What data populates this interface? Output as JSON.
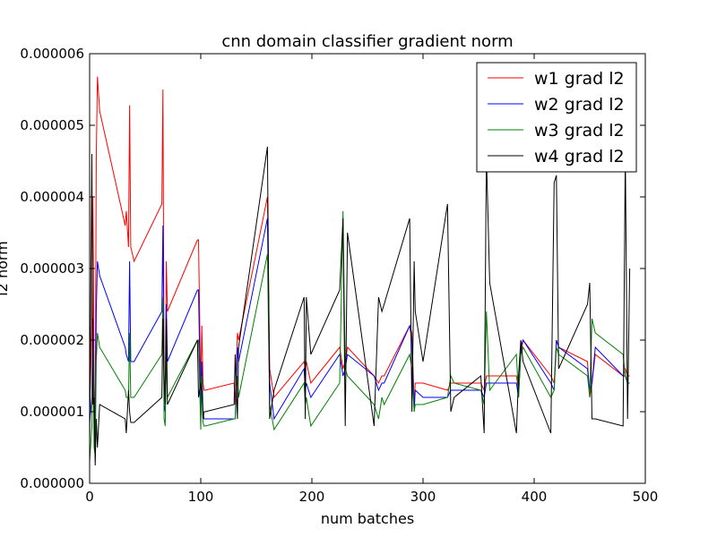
{
  "chart_data": {
    "type": "line",
    "title": "cnn domain classifier gradient norm",
    "xlabel": "num batches",
    "ylabel": "l2 norm",
    "xlim": [
      0,
      500
    ],
    "ylim": [
      0,
      6e-06
    ],
    "xticks": [
      0,
      100,
      200,
      300,
      400,
      500
    ],
    "xtick_labels": [
      "0",
      "100",
      "200",
      "300",
      "400",
      "500"
    ],
    "yticks": [
      0,
      1e-06,
      2e-06,
      3e-06,
      4e-06,
      5e-06,
      6e-06
    ],
    "ytick_labels": [
      "0.000000",
      "0.000001",
      "0.000002",
      "0.000003",
      "0.000004",
      "0.000005",
      "0.000006"
    ],
    "grid": false,
    "legend_position": "top-right",
    "series": [
      {
        "name": "w1 grad l2",
        "color": "#ff0000",
        "x": [
          0,
          2,
          3,
          4,
          5,
          6,
          7,
          9,
          32,
          33,
          35,
          36,
          37,
          40,
          65,
          66,
          67,
          68,
          69,
          70,
          97,
          98,
          100,
          101,
          102,
          103,
          104,
          130,
          131,
          133,
          134,
          160,
          162,
          166,
          193,
          194,
          195,
          199,
          225,
          228,
          230,
          232,
          256,
          260,
          263,
          265,
          288,
          290,
          292,
          293,
          300,
          322,
          325,
          328,
          352,
          355,
          357,
          360,
          384,
          386,
          388,
          390,
          415,
          418,
          420,
          422,
          448,
          450,
          452,
          455,
          480,
          482,
          484,
          486
        ],
        "y": [
          1e-06,
          2.2e-06,
          4e-06,
          1.4e-06,
          8e-07,
          4.5e-06,
          5.68e-06,
          5.2e-06,
          3.6e-06,
          3.8e-06,
          3.3e-06,
          5.28e-06,
          3.3e-06,
          3.1e-06,
          3.9e-06,
          5.5e-06,
          1.4e-06,
          1.2e-06,
          3.1e-06,
          2.4e-06,
          3.4e-06,
          3.4e-06,
          1.3e-06,
          2.2e-06,
          1.4e-06,
          1.3e-06,
          1.3e-06,
          1.4e-06,
          1.1e-06,
          2.1e-06,
          2e-06,
          4e-06,
          1.6e-06,
          1.2e-06,
          1.7e-06,
          1.6e-06,
          1.7e-06,
          1.4e-06,
          1.9e-06,
          1.6e-06,
          1.7e-06,
          1.9e-06,
          1.5e-06,
          1.4e-06,
          1.5e-06,
          1.5e-06,
          2.2e-06,
          2.1e-06,
          1.1e-06,
          1.4e-06,
          1.4e-06,
          1.3e-06,
          1.4e-06,
          1.4e-06,
          1.4e-06,
          1.3e-06,
          1.5e-06,
          1.5e-06,
          1.5e-06,
          1.3e-06,
          1.8e-06,
          2e-06,
          1.5e-06,
          1.4e-06,
          2e-06,
          1.9e-06,
          1.7e-06,
          1.2e-06,
          1.4e-06,
          1.8e-06,
          1.5e-06,
          1.6e-06,
          1.5e-06,
          1.5e-06
        ]
      },
      {
        "name": "w2 grad l2",
        "color": "#0000ff",
        "x": [
          0,
          2,
          3,
          4,
          5,
          6,
          7,
          9,
          32,
          33,
          35,
          36,
          37,
          40,
          65,
          66,
          67,
          68,
          69,
          70,
          97,
          98,
          100,
          101,
          102,
          103,
          104,
          130,
          131,
          133,
          134,
          160,
          162,
          166,
          193,
          194,
          195,
          199,
          225,
          228,
          230,
          232,
          256,
          260,
          263,
          265,
          288,
          290,
          292,
          293,
          300,
          322,
          325,
          328,
          352,
          355,
          357,
          360,
          384,
          386,
          388,
          390,
          415,
          418,
          420,
          422,
          448,
          450,
          452,
          455,
          480,
          482,
          484,
          486
        ],
        "y": [
          8.5e-07,
          1.2e-06,
          2.3e-06,
          9e-07,
          6e-07,
          2.4e-06,
          3.1e-06,
          2.9e-06,
          1.9e-06,
          1.8e-06,
          1.7e-06,
          3.1e-06,
          1.7e-06,
          1.7e-06,
          2.4e-06,
          3.6e-06,
          1.1e-06,
          1e-06,
          2.5e-06,
          1.7e-06,
          2.7e-06,
          2.7e-06,
          9e-07,
          1.7e-06,
          1e-06,
          9e-07,
          9e-07,
          9e-07,
          9e-07,
          1.9e-06,
          1.7e-06,
          3.7e-06,
          1.4e-06,
          9e-07,
          1.6e-06,
          1.3e-06,
          1.4e-06,
          1.2e-06,
          1.8e-06,
          1.5e-06,
          1.6e-06,
          1.8e-06,
          1.5e-06,
          1.3e-06,
          1.4e-06,
          1.4e-06,
          2.2e-06,
          2e-06,
          1e-06,
          1.3e-06,
          1.2e-06,
          1.2e-06,
          1.3e-06,
          1.3e-06,
          1.3e-06,
          1.2e-06,
          1.4e-06,
          1.4e-06,
          1.4e-06,
          1.2e-06,
          1.9e-06,
          2e-06,
          1.4e-06,
          1.3e-06,
          2e-06,
          1.9e-06,
          1.6e-06,
          1.3e-06,
          1.4e-06,
          1.9e-06,
          1.5e-06,
          1.5e-06,
          1.4e-06,
          1.4e-06
        ]
      },
      {
        "name": "w3 grad l2",
        "color": "#008000",
        "x": [
          0,
          2,
          3,
          4,
          5,
          6,
          7,
          9,
          32,
          33,
          35,
          36,
          37,
          40,
          65,
          66,
          67,
          68,
          69,
          70,
          97,
          98,
          100,
          101,
          102,
          103,
          104,
          130,
          131,
          133,
          134,
          160,
          162,
          166,
          193,
          194,
          195,
          199,
          225,
          228,
          230,
          232,
          256,
          260,
          263,
          265,
          288,
          290,
          292,
          293,
          300,
          322,
          325,
          328,
          352,
          355,
          357,
          360,
          384,
          386,
          388,
          390,
          415,
          418,
          420,
          422,
          448,
          450,
          452,
          455,
          480,
          482,
          484,
          486
        ],
        "y": [
          3e-07,
          8e-07,
          1.9e-06,
          5e-07,
          4e-07,
          1.7e-06,
          2.1e-06,
          1.9e-06,
          1.3e-06,
          1.2e-06,
          1.2e-06,
          2.1e-06,
          1.2e-06,
          1.2e-06,
          1.8e-06,
          2.6e-06,
          9e-07,
          8e-07,
          1.8e-06,
          1.2e-06,
          2e-06,
          2e-06,
          7.5e-07,
          1.5e-06,
          8.5e-07,
          8e-07,
          8e-07,
          9e-07,
          9e-07,
          1.5e-06,
          1.2e-06,
          3.2e-06,
          1.1e-06,
          7.5e-07,
          1.4e-06,
          1.1e-06,
          1.2e-06,
          8e-07,
          1.4e-06,
          3.8e-06,
          1.6e-06,
          1.5e-06,
          1.1e-06,
          9e-07,
          1.2e-06,
          1.1e-06,
          1.8e-06,
          1.6e-06,
          1e-06,
          1.1e-06,
          1.1e-06,
          1.2e-06,
          1.5e-06,
          1.4e-06,
          1.3e-06,
          1.1e-06,
          2.4e-06,
          1.3e-06,
          1.8e-06,
          1.2e-06,
          1.8e-06,
          1.9e-06,
          1.2e-06,
          1.3e-06,
          1.9e-06,
          1.8e-06,
          1.5e-06,
          1.2e-06,
          2.3e-06,
          2.1e-06,
          1.8e-06,
          1.5e-06,
          1.4e-06,
          1.4e-06
        ]
      },
      {
        "name": "w4 grad l2",
        "color": "#000000",
        "x": [
          0,
          2,
          3,
          4,
          5,
          6,
          7,
          9,
          32,
          33,
          35,
          36,
          37,
          40,
          65,
          66,
          67,
          68,
          69,
          70,
          97,
          98,
          100,
          101,
          102,
          103,
          104,
          130,
          131,
          133,
          134,
          160,
          162,
          166,
          193,
          194,
          195,
          199,
          225,
          228,
          230,
          232,
          256,
          260,
          263,
          265,
          288,
          290,
          292,
          293,
          300,
          322,
          325,
          328,
          352,
          355,
          357,
          360,
          384,
          386,
          388,
          390,
          415,
          418,
          420,
          422,
          448,
          450,
          452,
          455,
          480,
          482,
          484,
          486
        ],
        "y": [
          5e-07,
          4.6e-06,
          1.1e-06,
          1.2e-06,
          2.5e-07,
          9e-07,
          5e-07,
          1.1e-06,
          9e-07,
          7e-07,
          1.3e-06,
          1e-06,
          8.5e-07,
          8.5e-07,
          1.2e-06,
          2.3e-06,
          1.5e-06,
          1.1e-06,
          2.3e-06,
          1.1e-06,
          2e-06,
          1.2e-06,
          1.4e-06,
          1.3e-06,
          9e-07,
          1e-06,
          1e-06,
          1.1e-06,
          1.8e-06,
          9e-07,
          1.9e-06,
          4.7e-06,
          9e-07,
          1.3e-06,
          2.6e-06,
          9e-07,
          2.6e-06,
          1.8e-06,
          2.7e-06,
          3.7e-06,
          8e-07,
          3.5e-06,
          8e-07,
          2.6e-06,
          2.4e-06,
          2.5e-06,
          3.7e-06,
          1e-06,
          3.1e-06,
          2.4e-06,
          1.7e-06,
          3.9e-06,
          1e-06,
          1.2e-06,
          1.5e-06,
          7e-07,
          4.6e-06,
          2.8e-06,
          7e-07,
          1.5e-06,
          2e-06,
          1.7e-06,
          7e-07,
          4.2e-06,
          4.3e-06,
          1.6e-06,
          2.5e-06,
          2.8e-06,
          9e-07,
          9e-07,
          8e-07,
          4.6e-06,
          9e-07,
          3e-06
        ]
      }
    ]
  }
}
